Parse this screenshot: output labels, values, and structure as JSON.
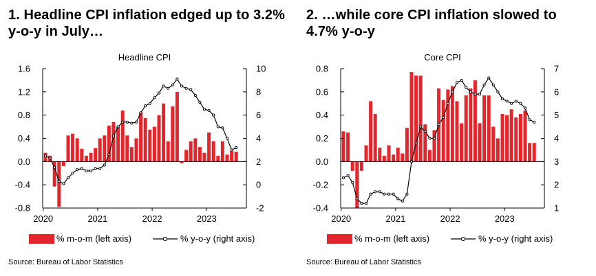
{
  "colors": {
    "bar": "#e3262b",
    "line": "#000000",
    "marker_fill": "#ffffff",
    "background": "#ffffff"
  },
  "charts": [
    {
      "panel_title": "1. Headline CPI inflation edged up to 3.2% y-o-y in July…",
      "source": "Source: Bureau of Labor Statistics",
      "chart_title": "Headline CPI",
      "left_axis": {
        "min": -0.8,
        "max": 1.6,
        "ticks": [
          "1.6",
          "1.2",
          "0.8",
          "0.4",
          "0.0",
          "-0.4",
          "-0.8"
        ]
      },
      "right_axis": {
        "min": -2,
        "max": 10,
        "ticks": [
          "10",
          "8",
          "6",
          "4",
          "2",
          "0",
          "-2"
        ]
      },
      "x_ticks": [
        "2020",
        "2021",
        "2022",
        "2023"
      ],
      "legend": {
        "bar": "% m-o-m (left axis)",
        "line": "% y-o-y (right axis)"
      }
    },
    {
      "panel_title": "2. …while core CPI inflation slowed to 4.7% y-o-y",
      "source": "Source: Bureau of Labor Statistics",
      "chart_title": "Core CPI",
      "left_axis": {
        "min": -0.4,
        "max": 0.8,
        "ticks": [
          "0.8",
          "0.6",
          "0.4",
          "0.2",
          "0.0",
          "-0.2",
          "-0.4"
        ]
      },
      "right_axis": {
        "min": 1,
        "max": 7,
        "ticks": [
          "7",
          "6",
          "5",
          "4",
          "3",
          "2",
          "1"
        ]
      },
      "x_ticks": [
        "2020",
        "2021",
        "2022",
        "2023"
      ],
      "legend": {
        "bar": "% m-o-m (left axis)",
        "line": "% y-o-y (right axis)"
      }
    }
  ],
  "chart_data": [
    {
      "type": "bar+line",
      "title": "Headline CPI",
      "x": [
        "2020-01",
        "2020-02",
        "2020-03",
        "2020-04",
        "2020-05",
        "2020-06",
        "2020-07",
        "2020-08",
        "2020-09",
        "2020-10",
        "2020-11",
        "2020-12",
        "2021-01",
        "2021-02",
        "2021-03",
        "2021-04",
        "2021-05",
        "2021-06",
        "2021-07",
        "2021-08",
        "2021-09",
        "2021-10",
        "2021-11",
        "2021-12",
        "2022-01",
        "2022-02",
        "2022-03",
        "2022-04",
        "2022-05",
        "2022-06",
        "2022-07",
        "2022-08",
        "2022-09",
        "2022-10",
        "2022-11",
        "2022-12",
        "2023-01",
        "2023-02",
        "2023-03",
        "2023-04",
        "2023-05",
        "2023-06",
        "2023-07"
      ],
      "series": [
        {
          "name": "% m-o-m (left axis)",
          "type": "bar",
          "axis": "left",
          "values": [
            0.15,
            0.1,
            -0.43,
            -0.78,
            -0.08,
            0.45,
            0.48,
            0.4,
            0.22,
            0.1,
            0.15,
            0.23,
            0.4,
            0.45,
            0.62,
            0.68,
            0.6,
            0.88,
            0.45,
            0.25,
            0.4,
            0.85,
            0.75,
            0.55,
            0.6,
            0.8,
            1.0,
            0.35,
            0.95,
            1.2,
            -0.03,
            0.2,
            0.35,
            0.4,
            0.25,
            0.15,
            0.5,
            0.35,
            0.1,
            0.35,
            0.12,
            0.18,
            0.17
          ]
        },
        {
          "name": "% y-o-y (right axis)",
          "type": "line",
          "axis": "right",
          "values": [
            2.5,
            2.3,
            1.5,
            0.3,
            0.1,
            0.6,
            1.0,
            1.3,
            1.4,
            1.2,
            1.2,
            1.4,
            1.4,
            1.7,
            2.6,
            4.2,
            5.0,
            5.4,
            5.4,
            5.3,
            5.4,
            6.2,
            6.8,
            7.0,
            7.5,
            7.9,
            8.5,
            8.3,
            8.6,
            9.1,
            8.5,
            8.3,
            8.2,
            7.7,
            7.1,
            6.5,
            6.4,
            6.0,
            5.0,
            4.9,
            4.0,
            3.0,
            3.2
          ]
        }
      ]
    },
    {
      "type": "bar+line",
      "title": "Core CPI",
      "x": [
        "2020-01",
        "2020-02",
        "2020-03",
        "2020-04",
        "2020-05",
        "2020-06",
        "2020-07",
        "2020-08",
        "2020-09",
        "2020-10",
        "2020-11",
        "2020-12",
        "2021-01",
        "2021-02",
        "2021-03",
        "2021-04",
        "2021-05",
        "2021-06",
        "2021-07",
        "2021-08",
        "2021-09",
        "2021-10",
        "2021-11",
        "2021-12",
        "2022-01",
        "2022-02",
        "2022-03",
        "2022-04",
        "2022-05",
        "2022-06",
        "2022-07",
        "2022-08",
        "2022-09",
        "2022-10",
        "2022-11",
        "2022-12",
        "2023-01",
        "2023-02",
        "2023-03",
        "2023-04",
        "2023-05",
        "2023-06",
        "2023-07"
      ],
      "series": [
        {
          "name": "% m-o-m (left axis)",
          "type": "bar",
          "axis": "left",
          "values": [
            0.26,
            0.25,
            -0.08,
            -0.4,
            -0.08,
            0.14,
            0.52,
            0.41,
            0.12,
            0.05,
            0.14,
            0.06,
            0.12,
            0.07,
            0.29,
            0.77,
            0.74,
            0.74,
            0.32,
            0.1,
            0.27,
            0.63,
            0.53,
            0.62,
            0.65,
            0.52,
            0.33,
            0.57,
            0.63,
            0.7,
            0.33,
            0.57,
            0.57,
            0.3,
            0.2,
            0.41,
            0.4,
            0.45,
            0.38,
            0.41,
            0.44,
            0.16,
            0.16
          ]
        },
        {
          "name": "% y-o-y (right axis)",
          "type": "line",
          "axis": "right",
          "values": [
            2.3,
            2.4,
            2.1,
            1.4,
            1.2,
            1.2,
            1.6,
            1.7,
            1.7,
            1.6,
            1.6,
            1.6,
            1.4,
            1.3,
            1.6,
            3.0,
            3.8,
            4.5,
            4.3,
            4.0,
            4.0,
            4.6,
            4.9,
            5.5,
            6.0,
            6.4,
            6.5,
            6.2,
            6.0,
            5.9,
            5.9,
            6.3,
            6.6,
            6.3,
            6.0,
            5.7,
            5.6,
            5.5,
            5.6,
            5.5,
            5.3,
            4.8,
            4.7
          ]
        }
      ]
    }
  ]
}
